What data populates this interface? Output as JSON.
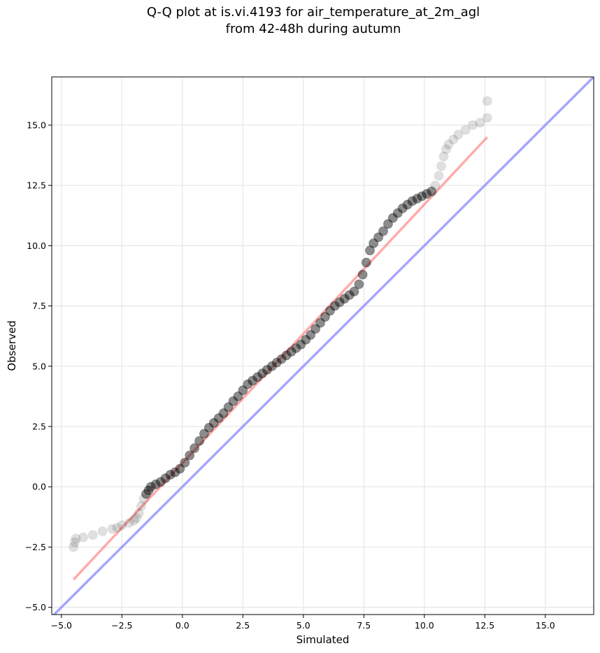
{
  "chart_data": {
    "type": "scatter",
    "title": "Q-Q plot at is.vi.4193 for air_temperature_at_2m_agl",
    "subtitle": "from 42-48h during autumn",
    "xlabel": "Simulated",
    "ylabel": "Observed",
    "xlim": [
      -5.4,
      17.0
    ],
    "ylim": [
      -5.3,
      17.0
    ],
    "xticks": [
      -5.0,
      -2.5,
      0.0,
      2.5,
      5.0,
      7.5,
      10.0,
      12.5,
      15.0
    ],
    "xtick_labels": [
      "−5.0",
      "−2.5",
      "0.0",
      "2.5",
      "5.0",
      "7.5",
      "10.0",
      "12.5",
      "15.0"
    ],
    "yticks": [
      -5.0,
      -2.5,
      0.0,
      2.5,
      5.0,
      7.5,
      10.0,
      12.5,
      15.0
    ],
    "ytick_labels": [
      "−5.0",
      "−2.5",
      "0.0",
      "2.5",
      "5.0",
      "7.5",
      "10.0",
      "12.5",
      "15.0"
    ],
    "grid": true,
    "series": [
      {
        "kind": "scatter",
        "color": "#000000",
        "x": [
          -4.5,
          -4.45,
          -4.4,
          -4.1,
          -3.7,
          -3.3,
          -2.9,
          -2.7,
          -2.5,
          -2.2,
          -2.0,
          -1.9,
          -1.8,
          -1.7,
          -1.6,
          -1.5,
          -1.4,
          -1.3,
          -1.1,
          -0.9,
          -0.7,
          -0.5,
          -0.3,
          -0.1,
          0.1,
          0.3,
          0.5,
          0.7,
          0.9,
          1.1,
          1.3,
          1.5,
          1.7,
          1.9,
          2.1,
          2.3,
          2.5,
          2.7,
          2.9,
          3.1,
          3.3,
          3.5,
          3.7,
          3.9,
          4.1,
          4.3,
          4.5,
          4.7,
          4.9,
          5.1,
          5.3,
          5.5,
          5.7,
          5.9,
          6.1,
          6.3,
          6.5,
          6.7,
          6.9,
          7.1,
          7.3,
          7.45,
          7.6,
          7.75,
          7.9,
          8.1,
          8.3,
          8.5,
          8.7,
          8.9,
          9.1,
          9.3,
          9.5,
          9.7,
          9.9,
          10.1,
          10.3,
          10.45,
          10.6,
          10.7,
          10.8,
          10.9,
          11.0,
          11.2,
          11.4,
          11.7,
          12.0,
          12.3,
          12.6,
          12.6
        ],
        "y": [
          -2.5,
          -2.3,
          -2.15,
          -2.1,
          -2.0,
          -1.85,
          -1.75,
          -1.7,
          -1.6,
          -1.5,
          -1.4,
          -1.3,
          -1.1,
          -0.8,
          -0.5,
          -0.3,
          -0.15,
          0.0,
          0.1,
          0.2,
          0.35,
          0.5,
          0.6,
          0.75,
          1.0,
          1.3,
          1.6,
          1.9,
          2.2,
          2.45,
          2.65,
          2.85,
          3.05,
          3.3,
          3.55,
          3.75,
          4.0,
          4.25,
          4.4,
          4.55,
          4.7,
          4.85,
          5.0,
          5.15,
          5.3,
          5.45,
          5.6,
          5.75,
          5.9,
          6.1,
          6.3,
          6.55,
          6.8,
          7.05,
          7.3,
          7.5,
          7.65,
          7.8,
          7.95,
          8.1,
          8.4,
          8.8,
          9.3,
          9.8,
          10.1,
          10.35,
          10.6,
          10.9,
          11.15,
          11.35,
          11.55,
          11.7,
          11.85,
          11.95,
          12.05,
          12.15,
          12.25,
          12.5,
          12.9,
          13.3,
          13.7,
          14.0,
          14.2,
          14.4,
          14.6,
          14.8,
          15.0,
          15.1,
          15.3,
          16.0
        ]
      },
      {
        "kind": "line",
        "color": "#ff8888",
        "x": [
          -4.5,
          12.6
        ],
        "y": [
          -3.85,
          14.5
        ]
      },
      {
        "kind": "line",
        "color": "#8888ff",
        "x": [
          -5.4,
          17.0
        ],
        "y": [
          -5.4,
          17.0
        ]
      }
    ]
  }
}
